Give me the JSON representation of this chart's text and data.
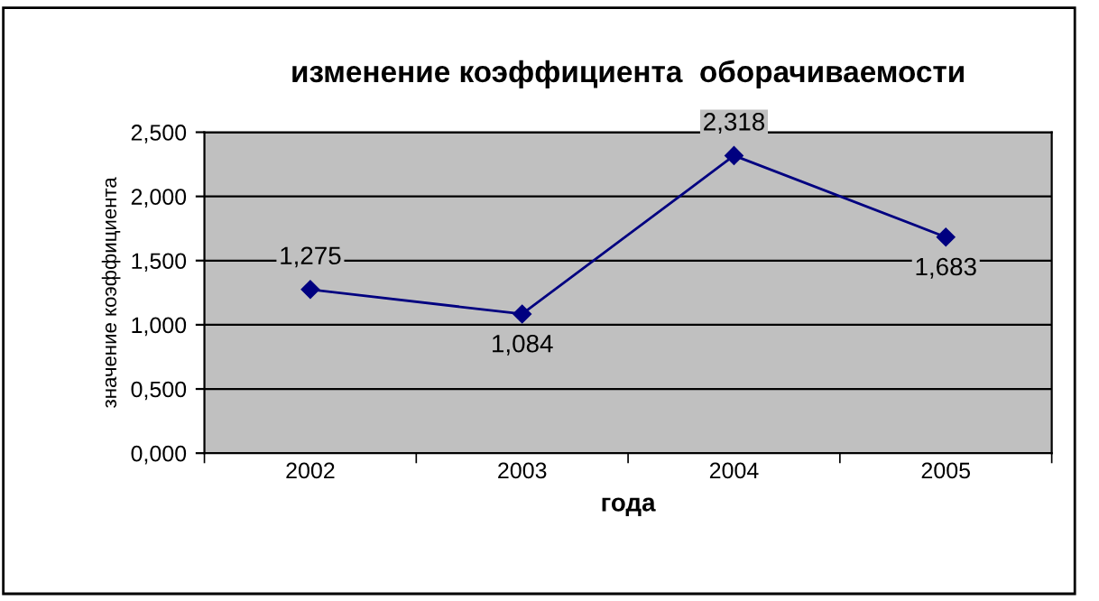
{
  "chart_data": {
    "type": "line",
    "title": "изменение коэффициента  оборачиваемости",
    "xlabel": "года",
    "ylabel": "значение коэффициента",
    "categories": [
      "2002",
      "2003",
      "2004",
      "2005"
    ],
    "series": [
      {
        "color": "#000080",
        "values": [
          1.275,
          1.084,
          2.318,
          1.683
        ],
        "value_labels": [
          "1,275",
          "1,084",
          "2,318",
          "1,683"
        ]
      }
    ],
    "ylim": [
      0,
      2.5
    ],
    "yticks": [
      {
        "value": 0,
        "label": "0,000"
      },
      {
        "value": 0.5,
        "label": "0,500"
      },
      {
        "value": 1,
        "label": "1,000"
      },
      {
        "value": 1.5,
        "label": "1,500"
      },
      {
        "value": 2,
        "label": "2,000"
      },
      {
        "value": 2.5,
        "label": "2,500"
      }
    ],
    "grid": "y",
    "marker": "diamond",
    "line_style": "solid"
  }
}
